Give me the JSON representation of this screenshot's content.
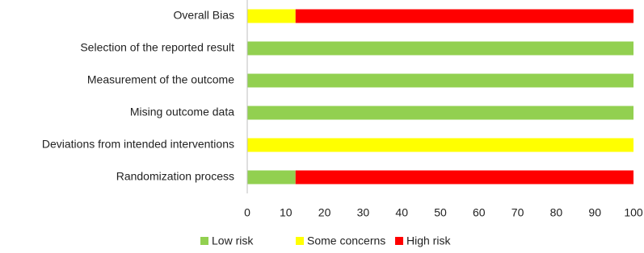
{
  "chart_data": {
    "type": "stacked-barh",
    "categories": [
      "Overall Bias",
      "Selection of the reported result",
      "Measurement of the outcome",
      "Mising outcome data",
      "Deviations from intended interventions",
      "Randomization process"
    ],
    "series": [
      {
        "name": "Low risk",
        "color": "#92d050",
        "values": [
          0,
          100,
          100,
          100,
          0,
          12.5
        ]
      },
      {
        "name": "Some concerns",
        "color": "#ffff00",
        "values": [
          12.5,
          0,
          0,
          0,
          100,
          0
        ]
      },
      {
        "name": "High risk",
        "color": "#ff0000",
        "values": [
          87.5,
          0,
          0,
          0,
          0,
          87.5
        ]
      }
    ],
    "xlim": [
      0,
      100
    ],
    "xticks": [
      0,
      10,
      20,
      30,
      40,
      50,
      60,
      70,
      80,
      90,
      100
    ],
    "legend": "bottom"
  }
}
